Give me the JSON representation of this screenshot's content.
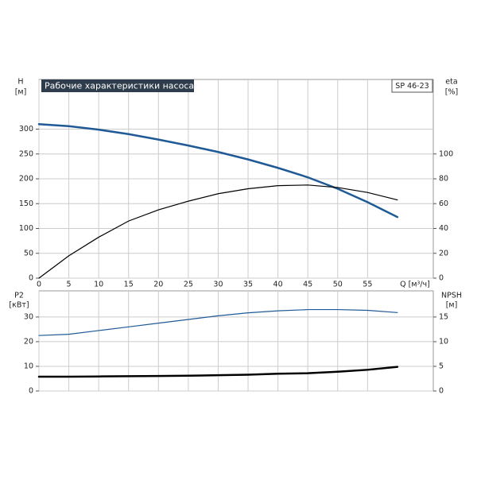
{
  "chart_data": [
    {
      "type": "line",
      "title": "Рабочие характеристики насоса",
      "subtitle": "SP 46-23",
      "y_label": "H",
      "y_unit": "[м]",
      "y2_label": "eta",
      "y2_unit": "[%]",
      "x_label": "Q [м³/ч]",
      "x": [
        0,
        5,
        10,
        15,
        20,
        25,
        30,
        35,
        40,
        45,
        50,
        55,
        60
      ],
      "xlim": [
        0,
        66
      ],
      "xticks": [
        0,
        5,
        10,
        15,
        20,
        25,
        30,
        35,
        40,
        45,
        50,
        55
      ],
      "ylim": [
        0,
        400
      ],
      "yticks": [
        0,
        50,
        100,
        150,
        200,
        250,
        300
      ],
      "y2lim": [
        0,
        160
      ],
      "y2ticks": [
        0,
        20,
        40,
        60,
        80,
        100
      ],
      "grid": true,
      "series": [
        {
          "color": "#1f5a96",
          "width": 2.5,
          "values": [
            310,
            306,
            299,
            290,
            279,
            267,
            254,
            239,
            222,
            203,
            180,
            153,
            123
          ]
        },
        {
          "color": "#000000",
          "width": 1.2,
          "axis": "y2",
          "values": [
            0,
            18,
            33,
            46,
            55,
            62,
            68,
            72,
            74.5,
            75,
            73,
            69,
            63
          ]
        }
      ]
    },
    {
      "type": "line",
      "y_label": "P2",
      "y_unit": "[кВт]",
      "y2_label": "NPSH",
      "y2_unit": "[м]",
      "x": [
        0,
        5,
        10,
        15,
        20,
        25,
        30,
        35,
        40,
        45,
        50,
        55,
        60
      ],
      "xlim": [
        0,
        66
      ],
      "xticks": [
        0,
        5,
        10,
        15,
        20,
        25,
        30,
        35,
        40,
        45,
        50,
        55
      ],
      "ylim": [
        0,
        40.6
      ],
      "yticks": [
        0,
        10,
        20,
        30
      ],
      "y2lim": [
        0,
        20.3
      ],
      "y2ticks": [
        0,
        5,
        10,
        15
      ],
      "grid": true,
      "series": [
        {
          "color": "#1f5a96",
          "width": 1.2,
          "values": [
            22.5,
            23,
            24.5,
            26,
            27.5,
            29,
            30.5,
            31.7,
            32.5,
            33,
            33,
            32.7,
            31.8
          ]
        },
        {
          "color": "#000000",
          "width": 2.5,
          "axis": "y2",
          "values": [
            2.9,
            2.9,
            2.95,
            3.0,
            3.05,
            3.1,
            3.2,
            3.3,
            3.5,
            3.6,
            3.9,
            4.3,
            4.9
          ]
        }
      ]
    }
  ]
}
